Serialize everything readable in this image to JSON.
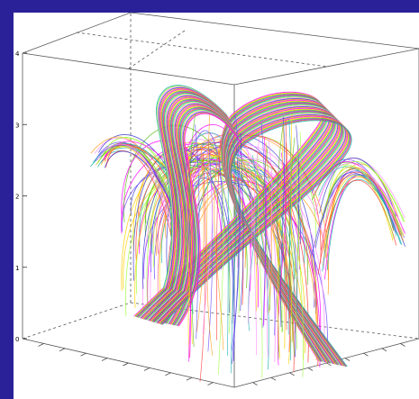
{
  "chart_data": {
    "type": "3d-field-lines",
    "z_axis": {
      "range": [
        0,
        4
      ],
      "tick_labels": [
        "0",
        "1",
        "2",
        "3",
        "4"
      ]
    },
    "grid": false,
    "colors": [
      "#ff00ff",
      "#ffd000",
      "#60c020",
      "#6a4cff",
      "#ff4040",
      "#20b0b0",
      "#a0ff40",
      "#ff8cff",
      "#4040d0",
      "#ffa020"
    ]
  }
}
